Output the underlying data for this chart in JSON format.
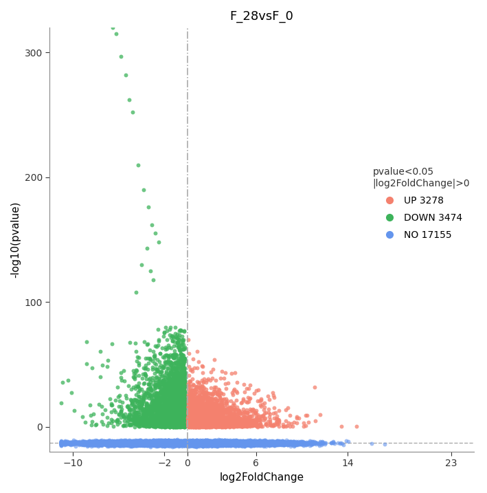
{
  "title": "F_28vsF_0",
  "xlabel": "log2FoldChange",
  "ylabel": "-log10(pvalue)",
  "legend_title": "pvalue<0.05\n|log2FoldChange|>0",
  "legend_entries": [
    "UP 3278",
    "DOWN 3474",
    "NO 17155"
  ],
  "colors": {
    "up": "#F4816E",
    "down": "#3DB35B",
    "no": "#6495ED"
  },
  "counts": {
    "up": 3278,
    "down": 3474,
    "no": 17155
  },
  "xlim": [
    -12,
    25
  ],
  "ylim": [
    -20,
    320
  ],
  "xticks": [
    -10,
    -2,
    0,
    6,
    14,
    23
  ],
  "yticks": [
    0,
    100,
    200,
    300
  ],
  "vline_x": 0,
  "hline_y": -13,
  "seed": 42,
  "figsize": [
    7.09,
    7.17
  ],
  "dpi": 100,
  "background_color": "#ffffff",
  "title_fontsize": 13,
  "label_fontsize": 11,
  "tick_fontsize": 10,
  "point_size": 18,
  "point_alpha": 0.75
}
